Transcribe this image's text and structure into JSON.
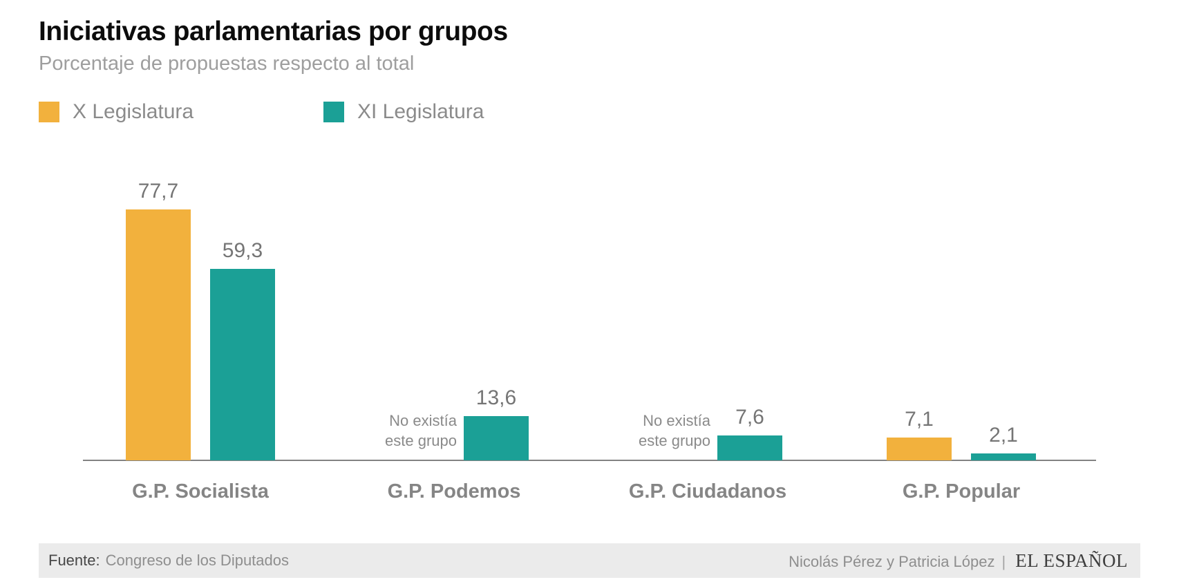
{
  "header": {
    "title": "Iniciativas parlamentarias por grupos",
    "subtitle": "Porcentaje de propuestas respecto al total"
  },
  "legend": [
    {
      "label": "X Legislatura",
      "color": "#F2B13D"
    },
    {
      "label": "XI Legislatura",
      "color": "#1BA096"
    }
  ],
  "chart_data": {
    "type": "bar",
    "title": "Iniciativas parlamentarias por grupos",
    "subtitle": "Porcentaje de propuestas respecto al total",
    "xlabel": "",
    "ylabel": "Porcentaje de propuestas respecto al total",
    "categories": [
      "G.P. Socialista",
      "G.P. Podemos",
      "G.P. Ciudadanos",
      "G.P. Popular"
    ],
    "series": [
      {
        "name": "X Legislatura",
        "color": "#F2B13D",
        "values": [
          77.7,
          null,
          null,
          7.1
        ]
      },
      {
        "name": "XI Legislatura",
        "color": "#1BA096",
        "values": [
          59.3,
          13.6,
          7.6,
          2.1
        ]
      }
    ],
    "missing_note_lines": [
      "No existía",
      "este grupo"
    ],
    "decimal_separator": ",",
    "ylim": [
      0,
      85
    ],
    "grid": false,
    "legend_position": "top-left",
    "colors": {
      "axis_line": "#828282",
      "value_label": "#757575",
      "category_label": "#858585"
    }
  },
  "footer": {
    "source_label": "Fuente:",
    "source_value": "Congreso de los Diputados",
    "credits": "Nicolás Pérez y Patricia López",
    "separator": "|",
    "brand": "EL ESPAÑOL"
  }
}
